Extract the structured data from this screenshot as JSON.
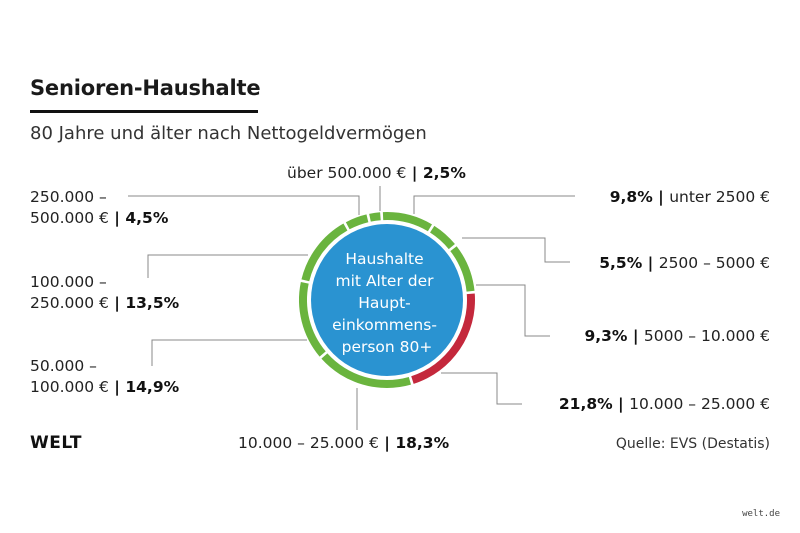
{
  "title": "Senioren-Haushalte",
  "subtitle": "80 Jahre und älter nach Nettogeldvermögen",
  "brand": "WELT",
  "source": "Quelle: EVS (Destatis)",
  "footer_site": "welt.de",
  "colors": {
    "green": "#6ab43e",
    "red": "#c4283c",
    "center": "#2a93d1",
    "line": "#888888"
  },
  "chart_data": {
    "type": "pie",
    "title": "Senioren-Haushalte",
    "subtitle": "80 Jahre und älter nach Nettogeldvermögen",
    "center_label": [
      "Haushalte",
      "mit Alter der",
      "Haupt-",
      "einkommens-",
      "person 80+"
    ],
    "slices": [
      {
        "category": "unter 2500 €",
        "value": 9.8,
        "pct": "9,8%",
        "color": "#6ab43e"
      },
      {
        "category": "2500 – 5000 €",
        "value": 5.5,
        "pct": "5,5%",
        "color": "#6ab43e"
      },
      {
        "category": "5000 – 10.000 €",
        "value": 9.3,
        "pct": "9,3%",
        "color": "#6ab43e"
      },
      {
        "category": "10.000 – 25.000 €",
        "value": 21.8,
        "pct": "21,8%",
        "color": "#c4283c"
      },
      {
        "category": "10.000 – 25.000 €",
        "value": 18.3,
        "pct": "18,3%",
        "color": "#6ab43e"
      },
      {
        "category": "50.000 – 100.000 €",
        "value": 14.9,
        "pct": "14,9%",
        "color": "#6ab43e"
      },
      {
        "category": "100.000 – 250.000 €",
        "value": 13.5,
        "pct": "13,5%",
        "color": "#6ab43e"
      },
      {
        "category": "250.000 – 500.000 €",
        "value": 4.5,
        "pct": "4,5%",
        "color": "#6ab43e"
      },
      {
        "category": "über 500.000 €",
        "value": 2.5,
        "pct": "2,5%",
        "color": "#6ab43e"
      }
    ],
    "labels": {
      "l0": {
        "cat": "unter 2500 €",
        "pct": "9,8%"
      },
      "l1": {
        "cat": "2500 – 5000 €",
        "pct": "5,5%"
      },
      "l2": {
        "cat": "5000 – 10.000 €",
        "pct": "9,3%"
      },
      "l3": {
        "cat": "10.000 – 25.000 €",
        "pct": "21,8%"
      },
      "l4": {
        "cat": "10.000 – 25.000 €",
        "pct": "18,3%"
      },
      "l5": {
        "cat1": "50.000 –",
        "cat2": "100.000 €",
        "pct": "14,9%"
      },
      "l6": {
        "cat1": "100.000 –",
        "cat2": "250.000 €",
        "pct": "13,5%"
      },
      "l7": {
        "cat1": "250.000 –",
        "cat2": "500.000 €",
        "pct": "4,5%"
      },
      "l8": {
        "cat": "über 500.000 €",
        "pct": "2,5%"
      }
    }
  }
}
